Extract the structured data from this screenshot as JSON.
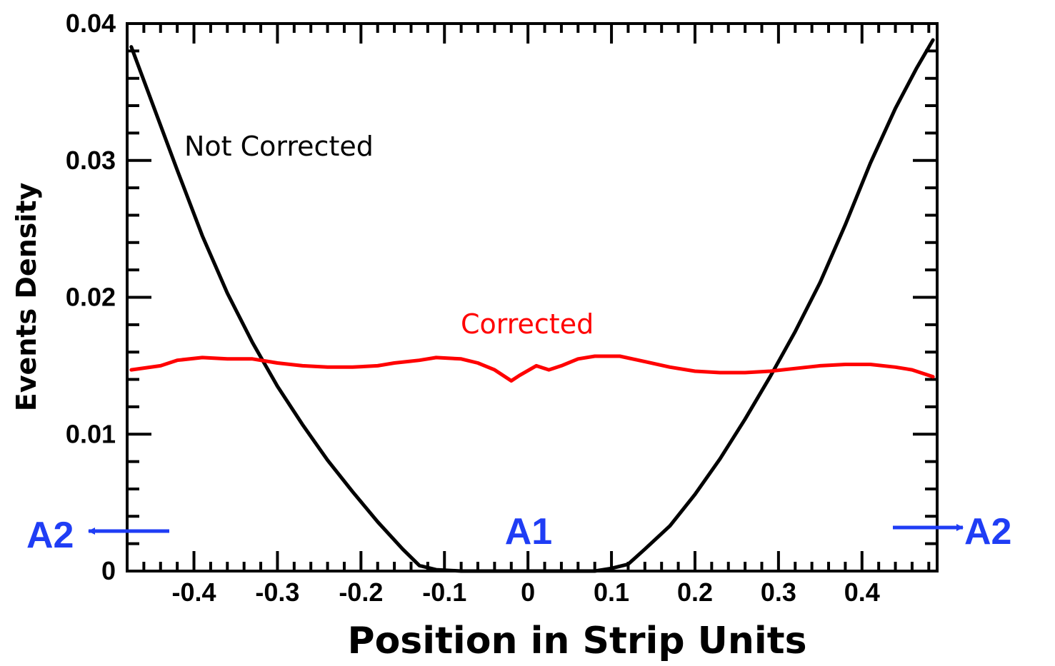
{
  "chart_data": {
    "type": "line",
    "title": "",
    "xlabel": "Position in Strip Units",
    "ylabel": "Events Density",
    "xlim": [
      -0.48,
      0.49
    ],
    "ylim": [
      0,
      0.04
    ],
    "x_ticks": [
      "-0.4",
      "-0.3",
      "-0.2",
      "-0.1",
      "0",
      "0.1",
      "0.2",
      "0.3",
      "0.4"
    ],
    "y_ticks": [
      "0",
      "0.01",
      "0.02",
      "0.03",
      "0.04"
    ],
    "grid": false,
    "series": [
      {
        "name": "Not Corrected",
        "color": "#000000",
        "points": [
          [
            -0.475,
            0.0383
          ],
          [
            -0.45,
            0.0342
          ],
          [
            -0.42,
            0.0293
          ],
          [
            -0.39,
            0.0245
          ],
          [
            -0.36,
            0.0203
          ],
          [
            -0.33,
            0.0167
          ],
          [
            -0.3,
            0.0135
          ],
          [
            -0.27,
            0.0107
          ],
          [
            -0.24,
            0.0081
          ],
          [
            -0.21,
            0.0058
          ],
          [
            -0.18,
            0.0036
          ],
          [
            -0.15,
            0.0016
          ],
          [
            -0.13,
            0.0004
          ],
          [
            -0.11,
            0.0001
          ],
          [
            -0.08,
            0.0
          ],
          [
            -0.05,
            0.0
          ],
          [
            0.0,
            0.0
          ],
          [
            0.05,
            0.0
          ],
          [
            0.08,
            0.0
          ],
          [
            0.1,
            0.0002
          ],
          [
            0.12,
            0.0005
          ],
          [
            0.14,
            0.0016
          ],
          [
            0.17,
            0.0033
          ],
          [
            0.2,
            0.0056
          ],
          [
            0.23,
            0.0082
          ],
          [
            0.26,
            0.0111
          ],
          [
            0.29,
            0.0142
          ],
          [
            0.32,
            0.0175
          ],
          [
            0.35,
            0.0211
          ],
          [
            0.38,
            0.0253
          ],
          [
            0.41,
            0.0298
          ],
          [
            0.44,
            0.0338
          ],
          [
            0.465,
            0.0367
          ],
          [
            0.485,
            0.0388
          ]
        ]
      },
      {
        "name": "Corrected",
        "color": "#ff0000",
        "points": [
          [
            -0.475,
            0.0147
          ],
          [
            -0.44,
            0.015
          ],
          [
            -0.42,
            0.0154
          ],
          [
            -0.39,
            0.0156
          ],
          [
            -0.36,
            0.0155
          ],
          [
            -0.33,
            0.0155
          ],
          [
            -0.3,
            0.0152
          ],
          [
            -0.27,
            0.015
          ],
          [
            -0.24,
            0.0149
          ],
          [
            -0.21,
            0.0149
          ],
          [
            -0.18,
            0.015
          ],
          [
            -0.16,
            0.0152
          ],
          [
            -0.13,
            0.0154
          ],
          [
            -0.11,
            0.0156
          ],
          [
            -0.08,
            0.0155
          ],
          [
            -0.06,
            0.0152
          ],
          [
            -0.04,
            0.0147
          ],
          [
            -0.02,
            0.0139
          ],
          [
            -0.01,
            0.0143
          ],
          [
            0.01,
            0.015
          ],
          [
            0.025,
            0.0147
          ],
          [
            0.04,
            0.015
          ],
          [
            0.06,
            0.0155
          ],
          [
            0.08,
            0.0157
          ],
          [
            0.11,
            0.0157
          ],
          [
            0.14,
            0.0153
          ],
          [
            0.17,
            0.0149
          ],
          [
            0.2,
            0.0146
          ],
          [
            0.23,
            0.0145
          ],
          [
            0.26,
            0.0145
          ],
          [
            0.29,
            0.0146
          ],
          [
            0.32,
            0.0148
          ],
          [
            0.35,
            0.015
          ],
          [
            0.38,
            0.0151
          ],
          [
            0.41,
            0.0151
          ],
          [
            0.44,
            0.0149
          ],
          [
            0.46,
            0.0147
          ],
          [
            0.485,
            0.0142
          ]
        ]
      }
    ],
    "annotations": [
      {
        "text": "Not Corrected",
        "color": "#000000"
      },
      {
        "text": "Corrected",
        "color": "#ff0000"
      },
      {
        "text": "A1",
        "color": "#1f3df5"
      },
      {
        "text": "A2",
        "color": "#1f3df5",
        "arrow": "left"
      },
      {
        "text": "A2",
        "color": "#1f3df5",
        "arrow": "right"
      }
    ]
  }
}
